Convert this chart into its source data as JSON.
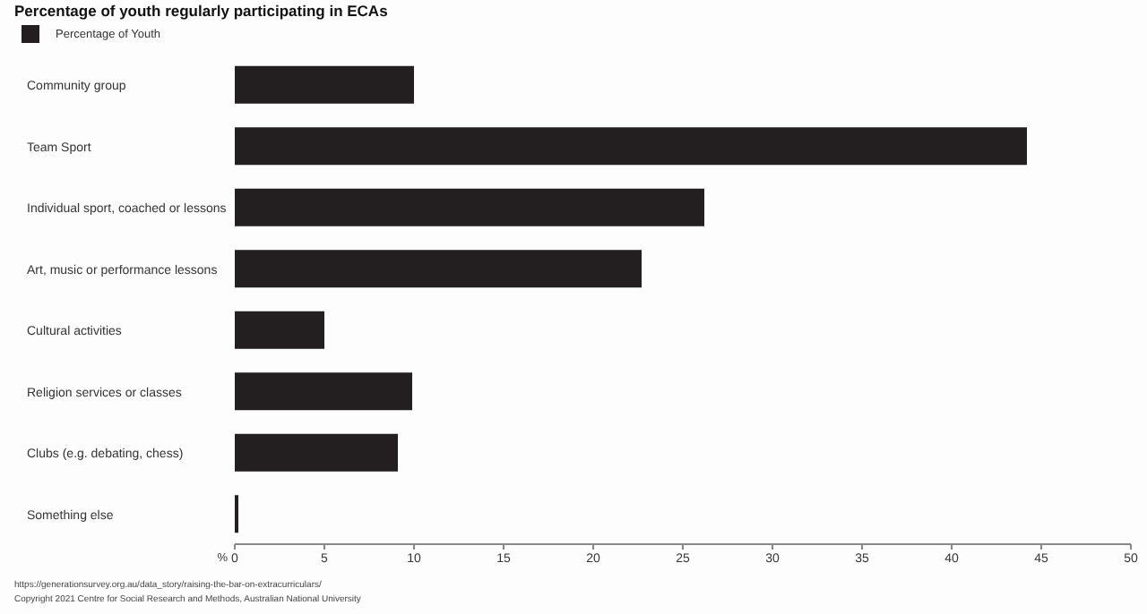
{
  "chart_data": {
    "type": "bar",
    "orientation": "horizontal",
    "title": "Percentage of youth regularly participating in ECAs",
    "xlabel": "%",
    "categories": [
      "Community group",
      "Team Sport",
      "Individual sport, coached or lessons",
      "Art, music or performance lessons",
      "Cultural activities",
      "Religion services or classes",
      "Clubs (e.g. debating, chess)",
      "Something else"
    ],
    "series": [
      {
        "name": "Percentage of Youth",
        "color": "#231f20",
        "values": [
          10.0,
          44.2,
          26.2,
          22.7,
          5.0,
          9.9,
          9.1,
          0.2
        ]
      }
    ],
    "xlim": [
      0,
      50
    ],
    "xticks": [
      0,
      5,
      10,
      15,
      20,
      25,
      30,
      35,
      40,
      45,
      50
    ],
    "grid": false,
    "legend": "top left",
    "annotations": [
      "https://generationsurvey.org.au/data_story/raising-the-bar-on-extracurriculars/",
      "Copyright 2021 Centre for Social Research and Methods, Australian National University"
    ]
  }
}
